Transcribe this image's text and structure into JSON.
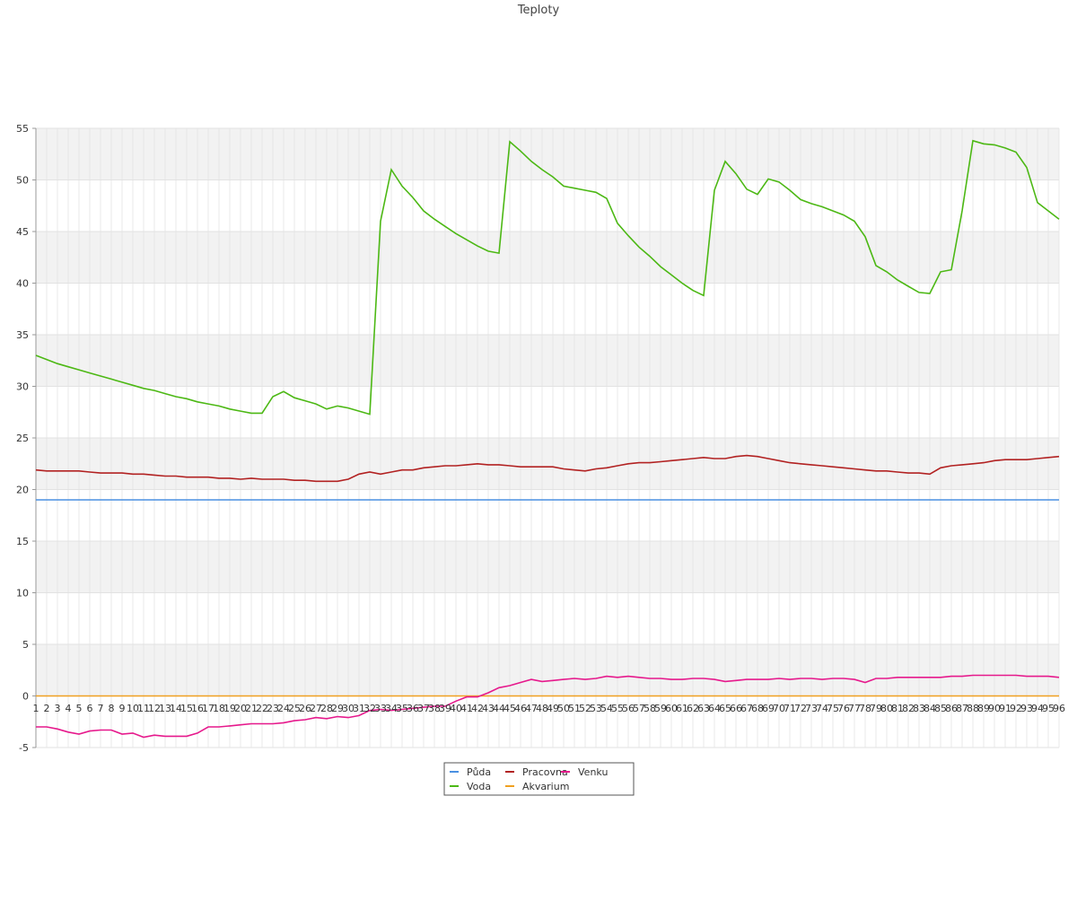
{
  "chart_data": {
    "type": "line",
    "title": "Teploty",
    "categories": [
      "1",
      "2",
      "3",
      "4",
      "5",
      "6",
      "7",
      "8",
      "9",
      "10",
      "11",
      "12",
      "13",
      "14",
      "15",
      "16",
      "17",
      "18",
      "19",
      "20",
      "21",
      "22",
      "23",
      "24",
      "25",
      "26",
      "27",
      "28",
      "29",
      "30",
      "31",
      "32",
      "33",
      "34",
      "35",
      "36",
      "37",
      "38",
      "39",
      "40",
      "41",
      "42",
      "43",
      "44",
      "45",
      "46",
      "47",
      "48",
      "49",
      "50",
      "51",
      "52",
      "53",
      "54",
      "55",
      "56",
      "57",
      "58",
      "59",
      "60",
      "61",
      "62",
      "63",
      "64",
      "65",
      "66",
      "67",
      "68",
      "69",
      "70",
      "71",
      "72",
      "73",
      "74",
      "75",
      "76",
      "77",
      "78",
      "79",
      "80",
      "81",
      "82",
      "83",
      "84",
      "85",
      "86",
      "87",
      "88",
      "89",
      "90",
      "91",
      "92",
      "93",
      "94",
      "95",
      "96"
    ],
    "ylim": [
      -5,
      55
    ],
    "yticks": [
      -5,
      0,
      5,
      10,
      15,
      20,
      25,
      30,
      35,
      40,
      45,
      50,
      55
    ],
    "grid": true,
    "legend": "bottom",
    "series": [
      {
        "name": "Půda",
        "color": "#4a90e2",
        "values": [
          19,
          19,
          19,
          19,
          19,
          19,
          19,
          19,
          19,
          19,
          19,
          19,
          19,
          19,
          19,
          19,
          19,
          19,
          19,
          19,
          19,
          19,
          19,
          19,
          19,
          19,
          19,
          19,
          19,
          19,
          19,
          19,
          19,
          19,
          19,
          19,
          19,
          19,
          19,
          19,
          19,
          19,
          19,
          19,
          19,
          19,
          19,
          19,
          19,
          19,
          19,
          19,
          19,
          19,
          19,
          19,
          19,
          19,
          19,
          19,
          19,
          19,
          19,
          19,
          19,
          19,
          19,
          19,
          19,
          19,
          19,
          19,
          19,
          19,
          19,
          19,
          19,
          19,
          19,
          19,
          19,
          19,
          19,
          19,
          19,
          19,
          19,
          19,
          19,
          19,
          19,
          19,
          19,
          19,
          19,
          19
        ]
      },
      {
        "name": "Voda",
        "color": "#4cb814",
        "values": [
          33.0,
          32.6,
          32.2,
          31.9,
          31.6,
          31.3,
          31.0,
          30.7,
          30.4,
          30.1,
          29.8,
          29.6,
          29.3,
          29.0,
          28.8,
          28.5,
          28.3,
          28.1,
          27.8,
          27.6,
          27.4,
          27.4,
          29.0,
          29.5,
          28.9,
          28.6,
          28.3,
          27.8,
          28.1,
          27.9,
          27.6,
          27.3,
          46,
          51.0,
          49.4,
          48.3,
          47.0,
          46.2,
          45.5,
          44.8,
          44.2,
          43.6,
          43.1,
          42.9,
          53.7,
          52.8,
          51.8,
          51.0,
          50.3,
          49.4,
          49.2,
          49.0,
          48.8,
          48.2,
          45.8,
          44.6,
          43.5,
          42.6,
          41.6,
          40.8,
          40.0,
          39.3,
          38.8,
          49,
          51.8,
          50.6,
          49.1,
          48.6,
          50.1,
          49.8,
          49.0,
          48.1,
          47.7,
          47.4,
          47.0,
          46.6,
          46.0,
          44.5,
          41.7,
          41.1,
          40.3,
          39.7,
          39.1,
          39.0,
          41.1,
          41.3,
          47,
          53.8,
          53.5,
          53.4,
          53.1,
          52.7,
          51.2,
          47.8,
          47.0,
          46.2
        ]
      },
      {
        "name": "Pracovna",
        "color": "#b22222",
        "values": [
          21.9,
          21.8,
          21.8,
          21.8,
          21.8,
          21.7,
          21.6,
          21.6,
          21.6,
          21.5,
          21.5,
          21.4,
          21.3,
          21.3,
          21.2,
          21.2,
          21.2,
          21.1,
          21.1,
          21.0,
          21.1,
          21.0,
          21.0,
          21.0,
          20.9,
          20.9,
          20.8,
          20.8,
          20.8,
          21.0,
          21.5,
          21.7,
          21.5,
          21.7,
          21.9,
          21.9,
          22.1,
          22.2,
          22.3,
          22.3,
          22.4,
          22.5,
          22.4,
          22.4,
          22.3,
          22.2,
          22.2,
          22.2,
          22.2,
          22.0,
          21.9,
          21.8,
          22.0,
          22.1,
          22.3,
          22.5,
          22.6,
          22.6,
          22.7,
          22.8,
          22.9,
          23.0,
          23.1,
          23.0,
          23.0,
          23.2,
          23.3,
          23.2,
          23.0,
          22.8,
          22.6,
          22.5,
          22.4,
          22.3,
          22.2,
          22.1,
          22.0,
          21.9,
          21.8,
          21.8,
          21.7,
          21.6,
          21.6,
          21.5,
          22.1,
          22.3,
          22.4,
          22.5,
          22.6,
          22.8,
          22.9,
          22.9,
          22.9,
          23.0,
          23.1,
          23.2
        ]
      },
      {
        "name": "Akvarium",
        "color": "#f0a020",
        "values": [
          0,
          0,
          0,
          0,
          0,
          0,
          0,
          0,
          0,
          0,
          0,
          0,
          0,
          0,
          0,
          0,
          0,
          0,
          0,
          0,
          0,
          0,
          0,
          0,
          0,
          0,
          0,
          0,
          0,
          0,
          0,
          0,
          0,
          0,
          0,
          0,
          0,
          0,
          0,
          0,
          0,
          0,
          0,
          0,
          0,
          0,
          0,
          0,
          0,
          0,
          0,
          0,
          0,
          0,
          0,
          0,
          0,
          0,
          0,
          0,
          0,
          0,
          0,
          0,
          0,
          0,
          0,
          0,
          0,
          0,
          0,
          0,
          0,
          0,
          0,
          0,
          0,
          0,
          0,
          0,
          0,
          0,
          0,
          0,
          0,
          0,
          0,
          0,
          0,
          0,
          0,
          0,
          0,
          0,
          0,
          0
        ]
      },
      {
        "name": "Venku",
        "color": "#e6198c",
        "values": [
          -3.0,
          -3.0,
          -3.2,
          -3.5,
          -3.7,
          -3.4,
          -3.3,
          -3.3,
          -3.7,
          -3.6,
          -4.0,
          -3.8,
          -3.9,
          -3.9,
          -3.9,
          -3.6,
          -3.0,
          -3.0,
          -2.9,
          -2.8,
          -2.7,
          -2.7,
          -2.7,
          -2.6,
          -2.4,
          -2.3,
          -2.1,
          -2.2,
          -2.0,
          -2.1,
          -1.9,
          -1.4,
          -1.3,
          -1.4,
          -1.3,
          -1.2,
          -1.1,
          -1.0,
          -1.0,
          -0.5,
          -0.1,
          -0.1,
          0.3,
          0.8,
          1.0,
          1.3,
          1.6,
          1.4,
          1.5,
          1.6,
          1.7,
          1.6,
          1.7,
          1.9,
          1.8,
          1.9,
          1.8,
          1.7,
          1.7,
          1.6,
          1.6,
          1.7,
          1.7,
          1.6,
          1.4,
          1.5,
          1.6,
          1.6,
          1.6,
          1.7,
          1.6,
          1.7,
          1.7,
          1.6,
          1.7,
          1.7,
          1.6,
          1.3,
          1.7,
          1.7,
          1.8,
          1.8,
          1.8,
          1.8,
          1.8,
          1.9,
          1.9,
          2.0,
          2.0,
          2.0,
          2.0,
          2.0,
          1.9,
          1.9,
          1.9,
          1.8
        ]
      }
    ]
  }
}
